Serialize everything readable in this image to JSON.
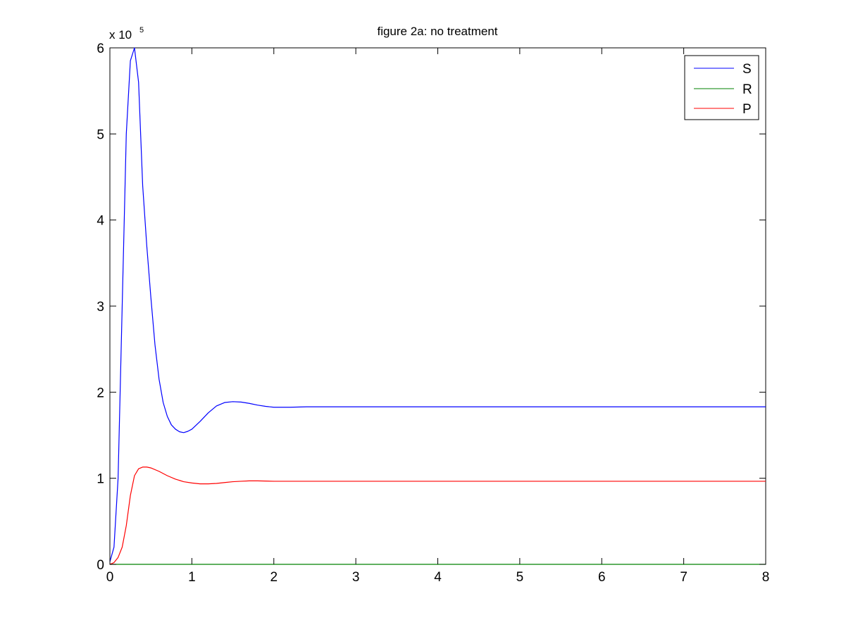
{
  "chart_data": {
    "type": "line",
    "title": "figure 2a: no treatment",
    "xlabel": "",
    "ylabel": "",
    "xlim": [
      0,
      8
    ],
    "ylim": [
      0,
      6
    ],
    "y_multiplier_prefix": "x 10",
    "y_multiplier_exponent": "5",
    "x_ticks": [
      "0",
      "1",
      "2",
      "3",
      "4",
      "5",
      "6",
      "7",
      "8"
    ],
    "y_ticks": [
      "0",
      "1",
      "2",
      "3",
      "4",
      "5",
      "6"
    ],
    "grid": false,
    "legend_position": "top-right",
    "series": [
      {
        "name": "S",
        "color": "#0000ff",
        "x": [
          0,
          0.05,
          0.1,
          0.15,
          0.2,
          0.25,
          0.3,
          0.35,
          0.4,
          0.45,
          0.5,
          0.55,
          0.6,
          0.65,
          0.7,
          0.75,
          0.8,
          0.85,
          0.9,
          0.95,
          1.0,
          1.1,
          1.2,
          1.3,
          1.4,
          1.5,
          1.6,
          1.7,
          1.8,
          1.9,
          2.0,
          2.2,
          2.4,
          3,
          4,
          5,
          6,
          7,
          8
        ],
        "values": [
          0.03,
          0.2,
          1.0,
          3.0,
          5.0,
          5.85,
          6.0,
          5.6,
          4.4,
          3.7,
          3.1,
          2.55,
          2.15,
          1.88,
          1.72,
          1.62,
          1.57,
          1.54,
          1.53,
          1.545,
          1.57,
          1.66,
          1.76,
          1.84,
          1.88,
          1.89,
          1.885,
          1.87,
          1.85,
          1.835,
          1.825,
          1.825,
          1.83,
          1.83,
          1.83,
          1.83,
          1.83,
          1.83,
          1.83
        ]
      },
      {
        "name": "R",
        "color": "#008000",
        "x": [
          0,
          1,
          2,
          3,
          4,
          5,
          6,
          7,
          8
        ],
        "values": [
          0,
          0,
          0,
          0,
          0,
          0,
          0,
          0,
          0
        ]
      },
      {
        "name": "P",
        "color": "#ff0000",
        "x": [
          0,
          0.05,
          0.1,
          0.15,
          0.2,
          0.25,
          0.3,
          0.35,
          0.4,
          0.45,
          0.5,
          0.6,
          0.7,
          0.8,
          0.9,
          1.0,
          1.1,
          1.2,
          1.3,
          1.4,
          1.5,
          1.6,
          1.7,
          1.8,
          2.0,
          2.5,
          3,
          4,
          5,
          6,
          7,
          8
        ],
        "values": [
          0,
          0.02,
          0.08,
          0.2,
          0.45,
          0.8,
          1.03,
          1.11,
          1.13,
          1.13,
          1.12,
          1.08,
          1.03,
          0.99,
          0.96,
          0.945,
          0.935,
          0.935,
          0.94,
          0.95,
          0.96,
          0.965,
          0.97,
          0.97,
          0.965,
          0.965,
          0.965,
          0.965,
          0.965,
          0.965,
          0.965,
          0.965
        ]
      }
    ]
  }
}
